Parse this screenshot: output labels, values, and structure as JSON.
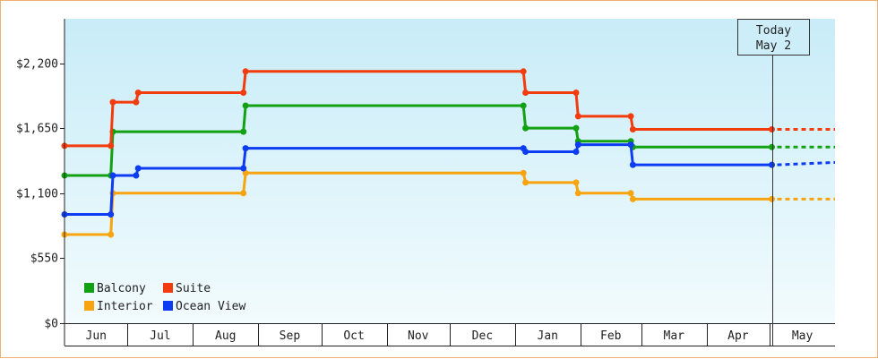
{
  "chart_data": {
    "type": "line",
    "step": true,
    "y_ticks": [
      "$0",
      "$550",
      "$1,100",
      "$1,650",
      "$2,200"
    ],
    "y_tick_values": [
      0,
      550,
      1100,
      1650,
      2200
    ],
    "ylim": [
      0,
      2575
    ],
    "months": [
      "Jun",
      "Jul",
      "Aug",
      "Sep",
      "Oct",
      "Nov",
      "Dec",
      "Jan",
      "Feb",
      "Mar",
      "Apr",
      "May"
    ],
    "x_domain": [
      "2023-06-01",
      "2024-05-31"
    ],
    "today": {
      "line1": "Today",
      "line2": "May 2",
      "date": "2024-05-02"
    },
    "projection_end": "2024-05-31",
    "legend": {
      "position": "bottom-left"
    },
    "colors": {
      "Balcony": "#12a112",
      "Suite": "#f23c0e",
      "Interior": "#f8a40e",
      "Ocean View": "#0e3cf2"
    },
    "series": [
      {
        "name": "Balcony",
        "points": [
          [
            "2023-06-01",
            1250
          ],
          [
            "2023-06-23",
            1250
          ],
          [
            "2023-06-24",
            1620
          ],
          [
            "2023-08-25",
            1620
          ],
          [
            "2023-08-26",
            1840
          ],
          [
            "2024-01-05",
            1840
          ],
          [
            "2024-01-06",
            1650
          ],
          [
            "2024-01-30",
            1650
          ],
          [
            "2024-01-31",
            1540
          ],
          [
            "2024-02-25",
            1540
          ],
          [
            "2024-02-26",
            1490
          ],
          [
            "2024-05-02",
            1490
          ]
        ]
      },
      {
        "name": "Suite",
        "points": [
          [
            "2023-06-01",
            1500
          ],
          [
            "2023-06-23",
            1500
          ],
          [
            "2023-06-24",
            1870
          ],
          [
            "2023-07-05",
            1870
          ],
          [
            "2023-07-06",
            1950
          ],
          [
            "2023-08-25",
            1950
          ],
          [
            "2023-08-26",
            2130
          ],
          [
            "2024-01-05",
            2130
          ],
          [
            "2024-01-06",
            1950
          ],
          [
            "2024-01-30",
            1950
          ],
          [
            "2024-01-31",
            1750
          ],
          [
            "2024-02-25",
            1750
          ],
          [
            "2024-02-26",
            1640
          ],
          [
            "2024-05-02",
            1640
          ]
        ]
      },
      {
        "name": "Interior",
        "points": [
          [
            "2023-06-01",
            750
          ],
          [
            "2023-06-23",
            750
          ],
          [
            "2023-06-24",
            1100
          ],
          [
            "2023-08-25",
            1100
          ],
          [
            "2023-08-26",
            1270
          ],
          [
            "2024-01-05",
            1270
          ],
          [
            "2024-01-06",
            1190
          ],
          [
            "2024-01-30",
            1190
          ],
          [
            "2024-01-31",
            1100
          ],
          [
            "2024-02-25",
            1100
          ],
          [
            "2024-02-26",
            1050
          ],
          [
            "2024-05-02",
            1050
          ]
        ]
      },
      {
        "name": "Ocean View",
        "points": [
          [
            "2023-06-01",
            920
          ],
          [
            "2023-06-23",
            920
          ],
          [
            "2023-06-24",
            1250
          ],
          [
            "2023-07-05",
            1250
          ],
          [
            "2023-07-06",
            1310
          ],
          [
            "2023-08-25",
            1310
          ],
          [
            "2023-08-26",
            1480
          ],
          [
            "2024-01-05",
            1480
          ],
          [
            "2024-01-06",
            1450
          ],
          [
            "2024-01-30",
            1450
          ],
          [
            "2024-01-31",
            1510
          ],
          [
            "2024-02-25",
            1510
          ],
          [
            "2024-02-26",
            1340
          ],
          [
            "2024-05-02",
            1340
          ]
        ]
      }
    ],
    "projection": [
      {
        "name": "Balcony",
        "end_value": 1490
      },
      {
        "name": "Suite",
        "end_value": 1640
      },
      {
        "name": "Interior",
        "end_value": 1050
      },
      {
        "name": "Ocean View",
        "end_value": 1360
      }
    ],
    "grid": false
  }
}
